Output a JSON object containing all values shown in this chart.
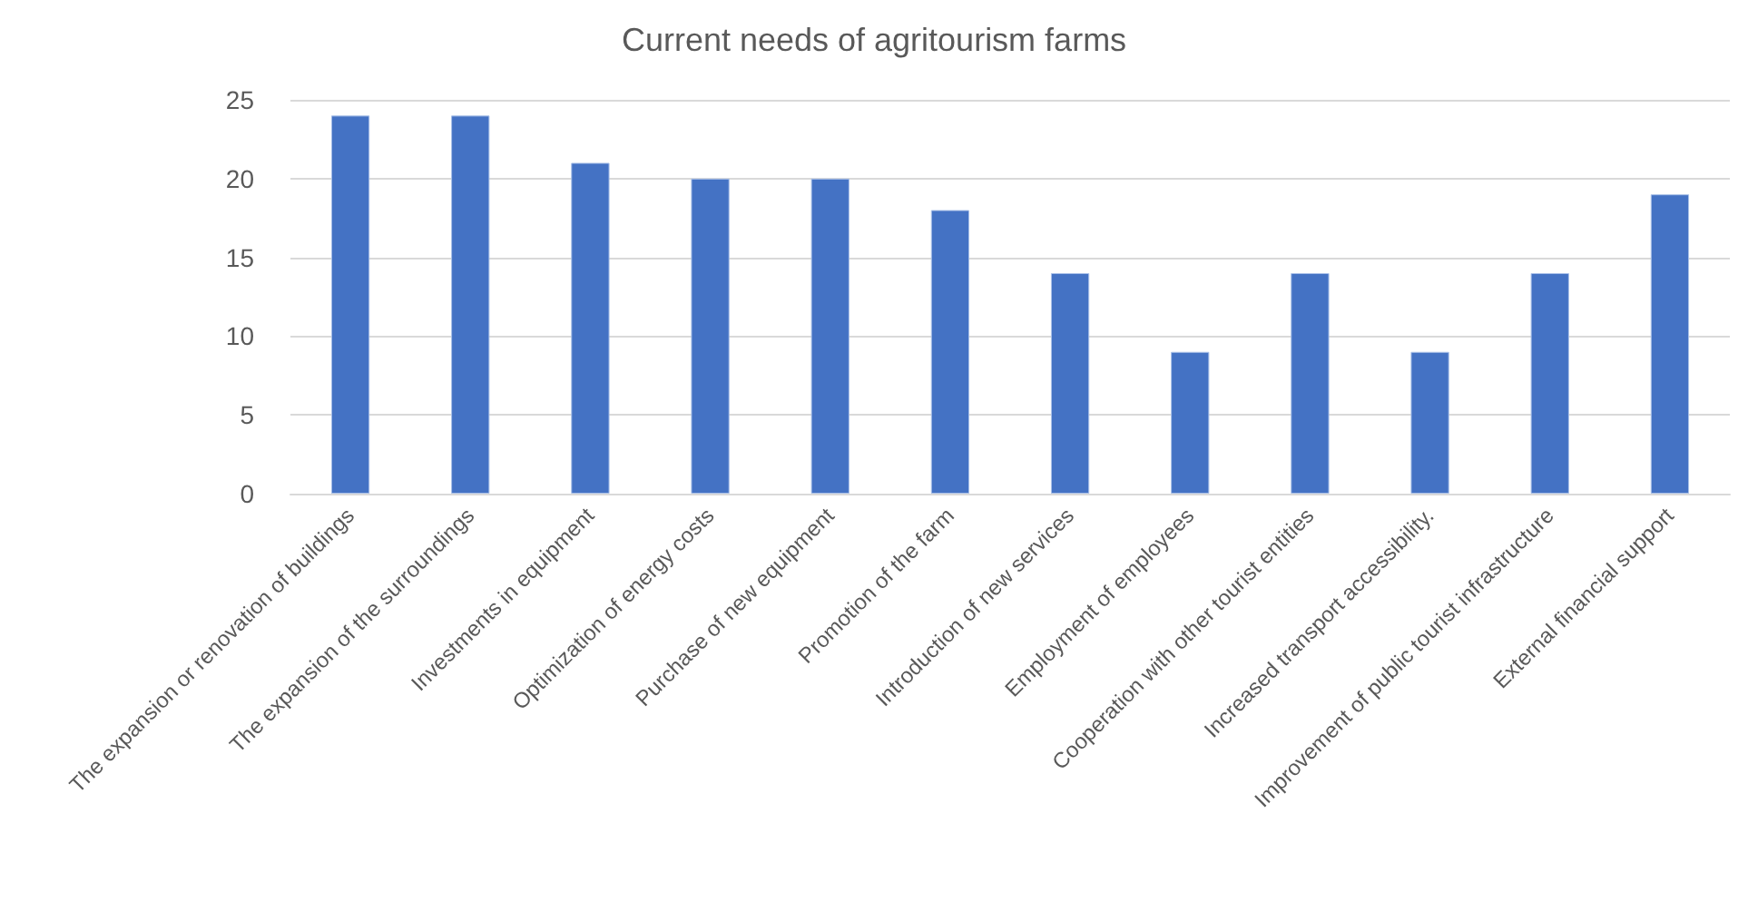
{
  "chart_data": {
    "type": "bar",
    "title": "Current needs of agritourism farms",
    "categories": [
      "The expansion or renovation of buildings",
      "The expansion of the surroundings",
      "Investments in equipment",
      "Optimization of energy costs",
      "Purchase of new equipment",
      "Promotion of the farm",
      "Introduction of new services",
      "Employment of employees",
      "Cooperation with other tourist entities",
      "Increased transport accessibility.",
      "Improvement of public tourist infrastructure",
      "External financial support"
    ],
    "values": [
      24,
      24,
      21,
      20,
      20,
      18,
      14,
      9,
      14,
      9,
      14,
      19
    ],
    "color": "#4472c4",
    "ylim": [
      0,
      25
    ],
    "yticks": [
      0,
      5,
      10,
      15,
      20,
      25
    ],
    "grid": "y"
  }
}
